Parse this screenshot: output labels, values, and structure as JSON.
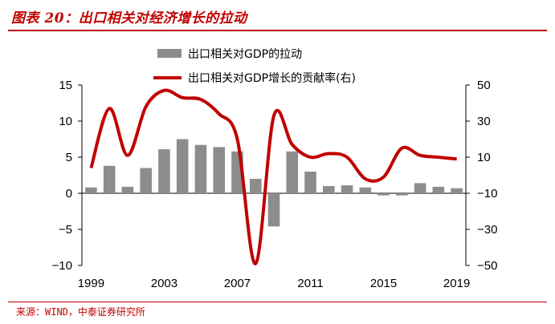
{
  "header": {
    "title": "图表 20：出口相关对经济增长的拉动"
  },
  "source": "来源：WIND，中泰证券研究所",
  "colors": {
    "accent": "#c00000",
    "bar": "#8c8c8c",
    "line": "#c00000"
  },
  "chart_data": {
    "type": "bar+line",
    "categories": [
      "1999",
      "2000",
      "2001",
      "2002",
      "2003",
      "2004",
      "2005",
      "2006",
      "2007",
      "2008",
      "2009",
      "2010",
      "2011",
      "2012",
      "2013",
      "2014",
      "2015",
      "2016",
      "2017",
      "2018",
      "2019"
    ],
    "xtick_labels": [
      "1999",
      "2003",
      "2007",
      "2011",
      "2015",
      "2019"
    ],
    "series": [
      {
        "name": "出口相关对GDP的拉动",
        "type": "bar",
        "axis": "left",
        "values": [
          0.8,
          3.8,
          0.9,
          3.5,
          6.1,
          7.5,
          6.7,
          6.4,
          5.8,
          2.0,
          -4.6,
          5.8,
          3.0,
          1.0,
          1.1,
          0.8,
          -0.3,
          -0.3,
          1.4,
          0.9,
          0.7
        ]
      },
      {
        "name": "出口相关对GDP增长的贡献率(右)",
        "type": "line",
        "axis": "right",
        "values": [
          4,
          37,
          11,
          38,
          47,
          43,
          42,
          34,
          20,
          -49,
          33,
          17,
          10,
          12,
          10,
          -2,
          -1,
          15,
          11,
          10,
          9
        ]
      }
    ],
    "left_axis": {
      "ylim": [
        -10,
        15
      ],
      "ticks": [
        "15",
        "10",
        "5",
        "0",
        "−5",
        "−10"
      ],
      "tick_values": [
        15,
        10,
        5,
        0,
        -5,
        -10
      ]
    },
    "right_axis": {
      "ylim": [
        -50,
        50
      ],
      "ticks": [
        "50",
        "30",
        "10",
        "−10",
        "−30",
        "−50"
      ],
      "tick_values": [
        50,
        30,
        10,
        -10,
        -30,
        -50
      ]
    },
    "legend": {
      "placement": "top",
      "entries": [
        "出口相关对GDP的拉动",
        "出口相关对GDP增长的贡献率(右)"
      ]
    },
    "grid": false
  }
}
